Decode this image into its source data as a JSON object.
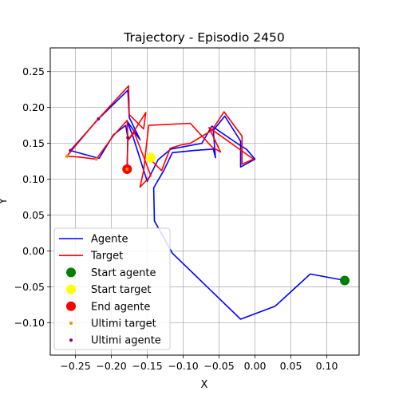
{
  "chart_data": {
    "type": "line",
    "title": "Trajectory - Episodio 2450",
    "xlabel": "X",
    "ylabel": "Y",
    "xlim": [
      -0.285,
      0.145
    ],
    "ylim": [
      -0.145,
      0.283
    ],
    "x_ticks": [
      -0.25,
      -0.2,
      -0.15,
      -0.1,
      -0.05,
      0.0,
      0.05,
      0.1
    ],
    "x_tick_labels": [
      "−0.25",
      "−0.20",
      "−0.15",
      "−0.10",
      "−0.05",
      "0.00",
      "0.05",
      "0.10"
    ],
    "y_ticks": [
      -0.1,
      -0.05,
      0.0,
      0.05,
      0.1,
      0.15,
      0.2,
      0.25
    ],
    "y_tick_labels": [
      "−0.10",
      "−0.05",
      "0.00",
      "0.05",
      "0.10",
      "0.15",
      "0.20",
      "0.25"
    ],
    "grid": true,
    "legend_position": "lower-left",
    "series": [
      {
        "name": "Agente",
        "kind": "line",
        "color": "#0000ff",
        "points": [
          [
            0.125,
            -0.041
          ],
          [
            0.077,
            -0.032
          ],
          [
            0.028,
            -0.077
          ],
          [
            -0.02,
            -0.095
          ],
          [
            -0.115,
            -0.003
          ],
          [
            -0.14,
            0.042
          ],
          [
            -0.141,
            0.088
          ],
          [
            -0.127,
            0.112
          ],
          [
            -0.115,
            0.137
          ],
          [
            -0.085,
            0.14
          ],
          [
            -0.058,
            0.142
          ],
          [
            -0.055,
            0.13
          ],
          [
            -0.058,
            0.168
          ],
          [
            -0.042,
            0.188
          ],
          [
            -0.02,
            0.153
          ],
          [
            -0.02,
            0.117
          ],
          [
            0.0,
            0.128
          ],
          [
            -0.012,
            0.142
          ],
          [
            -0.022,
            0.148
          ],
          [
            -0.06,
            0.174
          ],
          [
            -0.074,
            0.15
          ],
          [
            -0.117,
            0.142
          ],
          [
            -0.135,
            0.127
          ],
          [
            -0.15,
            0.097
          ],
          [
            -0.17,
            0.16
          ],
          [
            -0.178,
            0.181
          ],
          [
            -0.16,
            0.155
          ],
          [
            -0.175,
            0.186
          ],
          [
            -0.177,
            0.224
          ],
          [
            -0.218,
            0.184
          ],
          [
            -0.257,
            0.14
          ],
          [
            -0.217,
            0.129
          ],
          [
            -0.197,
            0.162
          ],
          [
            -0.18,
            0.175
          ],
          [
            -0.177,
            0.158
          ],
          [
            -0.178,
            0.116
          ]
        ]
      },
      {
        "name": "Target",
        "kind": "line",
        "color": "#ff0000",
        "points": [
          [
            -0.148,
            0.13
          ],
          [
            -0.13,
            0.112
          ],
          [
            -0.118,
            0.143
          ],
          [
            -0.102,
            0.148
          ],
          [
            -0.09,
            0.15
          ],
          [
            -0.06,
            0.168
          ],
          [
            -0.043,
            0.194
          ],
          [
            -0.018,
            0.16
          ],
          [
            -0.018,
            0.121
          ],
          [
            -0.002,
            0.128
          ],
          [
            -0.019,
            0.14
          ],
          [
            -0.064,
            0.172
          ],
          [
            -0.048,
            0.138
          ],
          [
            -0.06,
            0.145
          ],
          [
            -0.09,
            0.178
          ],
          [
            -0.148,
            0.175
          ],
          [
            -0.155,
            0.112
          ],
          [
            -0.16,
            0.089
          ],
          [
            -0.145,
            0.105
          ],
          [
            -0.168,
            0.165
          ],
          [
            -0.176,
            0.155
          ],
          [
            -0.152,
            0.193
          ],
          [
            -0.155,
            0.17
          ],
          [
            -0.175,
            0.19
          ],
          [
            -0.176,
            0.23
          ],
          [
            -0.222,
            0.18
          ],
          [
            -0.262,
            0.132
          ],
          [
            -0.246,
            0.131
          ],
          [
            -0.221,
            0.128
          ],
          [
            -0.196,
            0.162
          ],
          [
            -0.178,
            0.182
          ],
          [
            -0.177,
            0.158
          ],
          [
            -0.178,
            0.114
          ]
        ]
      },
      {
        "name": "Start agente",
        "kind": "marker",
        "color": "#008000",
        "size": 12,
        "points": [
          [
            0.125,
            -0.041
          ]
        ]
      },
      {
        "name": "Start target",
        "kind": "marker",
        "color": "#ffff00",
        "size": 12,
        "points": [
          [
            -0.145,
            0.13
          ]
        ]
      },
      {
        "name": "End agente",
        "kind": "marker",
        "color": "#ff0000",
        "size": 12,
        "points": [
          [
            -0.178,
            0.114
          ]
        ]
      },
      {
        "name": "Ultimi target",
        "kind": "marker",
        "color": "#ff8c00",
        "size": 4,
        "points": [
          [
            -0.262,
            0.132
          ],
          [
            -0.221,
            0.128
          ],
          [
            -0.178,
            0.114
          ]
        ]
      },
      {
        "name": "Ultimi agente",
        "kind": "marker",
        "color": "#800080",
        "size": 4,
        "points": [
          [
            -0.218,
            0.184
          ],
          [
            -0.257,
            0.14
          ],
          [
            -0.177,
            0.158
          ]
        ]
      }
    ]
  }
}
